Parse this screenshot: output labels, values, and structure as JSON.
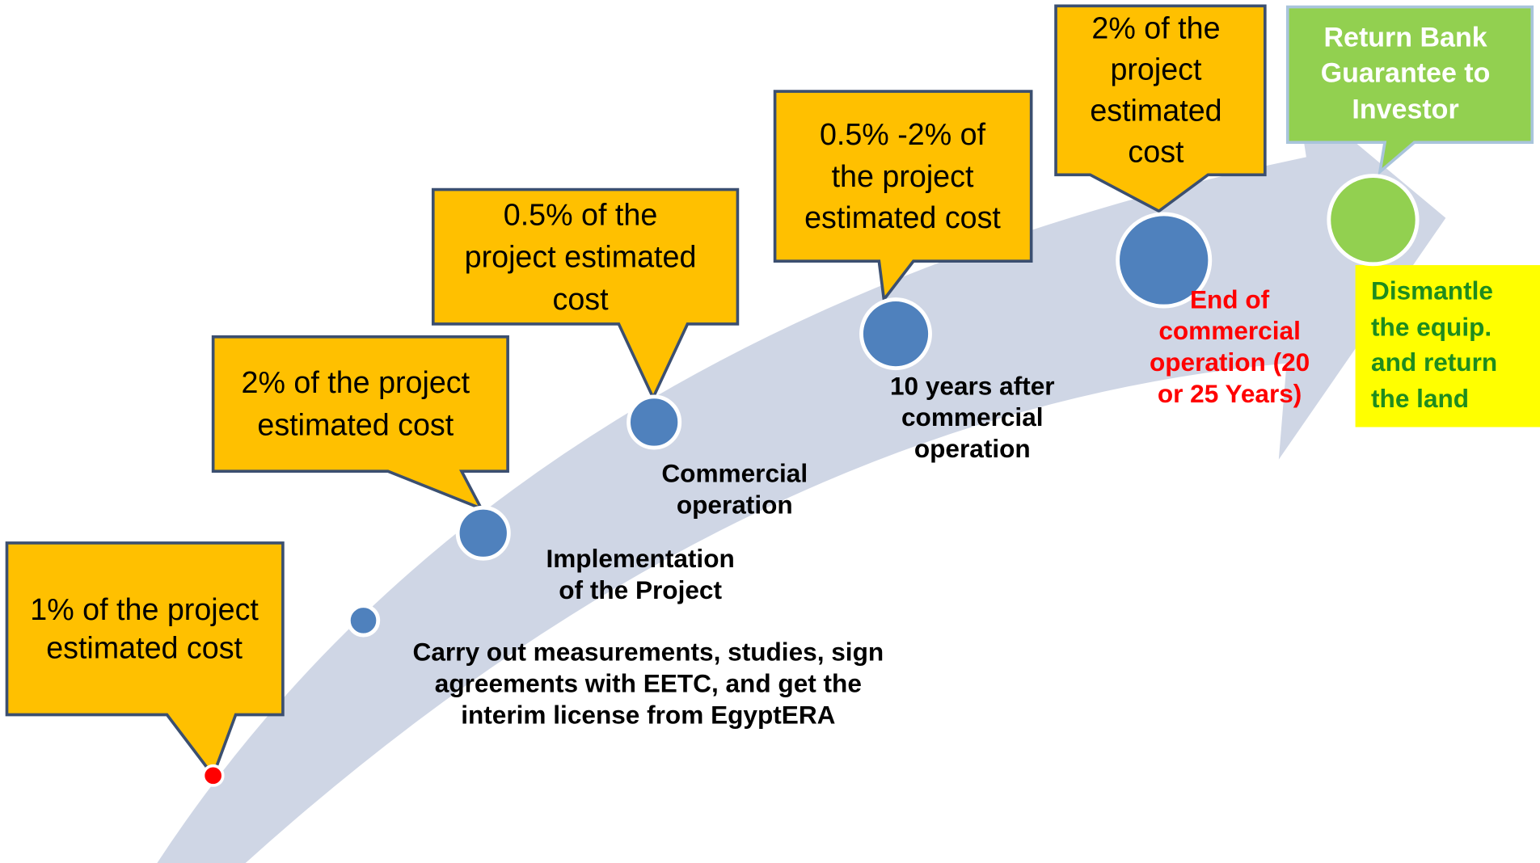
{
  "callouts": [
    {
      "lines": [
        "1% of the project",
        "estimated cost"
      ]
    },
    {
      "lines": [
        "2% of the project",
        "estimated cost"
      ]
    },
    {
      "lines": [
        "0.5% of the",
        "project estimated",
        "cost"
      ]
    },
    {
      "lines": [
        "0.5% -2% of",
        "the project",
        "estimated cost"
      ]
    },
    {
      "lines": [
        "2% of the",
        "project",
        "estimated",
        "cost"
      ]
    },
    {
      "lines": [
        "Return Bank",
        "Guarantee to",
        "Investor"
      ]
    }
  ],
  "milestones": [
    {
      "lines": [
        "Carry out measurements, studies, sign",
        "agreements with EETC, and get the",
        "interim license from EgyptERA"
      ]
    },
    {
      "lines": [
        "Implementation",
        "of the Project"
      ]
    },
    {
      "lines": [
        "Commercial",
        "operation"
      ]
    },
    {
      "lines": [
        "10 years after",
        "commercial",
        "operation"
      ]
    },
    {
      "lines": [
        "End of",
        "commercial",
        "operation (20",
        "or 25 Years)"
      ]
    },
    {
      "lines": [
        "Dismantle",
        "the equip.",
        "and return",
        "the land"
      ]
    }
  ]
}
